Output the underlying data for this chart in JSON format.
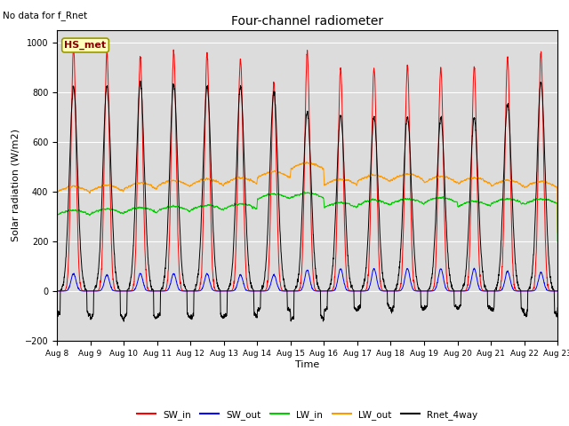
{
  "title": "Four-channel radiometer",
  "top_left_text": "No data for f_Rnet",
  "station_label": "HS_met",
  "ylabel": "Solar radiation (W/m2)",
  "xlabel": "Time",
  "ylim": [
    -200,
    1050
  ],
  "yticks": [
    -200,
    0,
    200,
    400,
    600,
    800,
    1000
  ],
  "n_days": 15,
  "day_start": 8,
  "bg_color": "#dcdcdc",
  "legend": [
    "SW_in",
    "SW_out",
    "LW_in",
    "LW_out",
    "Rnet_4way"
  ],
  "legend_colors": [
    "#ff0000",
    "#0000ff",
    "#00cc00",
    "#ff9900",
    "#000000"
  ],
  "SW_in_peak": [
    980,
    960,
    945,
    960,
    960,
    935,
    840,
    960,
    895,
    900,
    905,
    900,
    900,
    940,
    960
  ],
  "SW_out_peak": [
    70,
    65,
    70,
    70,
    70,
    65,
    65,
    85,
    90,
    90,
    90,
    90,
    90,
    80,
    75
  ],
  "LW_in_base": [
    305,
    310,
    315,
    320,
    325,
    330,
    370,
    375,
    335,
    345,
    350,
    355,
    340,
    350,
    350
  ],
  "LW_out_base": [
    395,
    400,
    410,
    420,
    425,
    430,
    455,
    490,
    425,
    440,
    445,
    435,
    430,
    420,
    415
  ],
  "Rnet_peak": [
    820,
    820,
    840,
    830,
    820,
    820,
    800,
    720,
    705,
    695,
    700,
    695,
    695,
    750,
    840
  ],
  "Rnet_night": [
    -100,
    -110,
    -110,
    -105,
    -110,
    -105,
    -80,
    -120,
    -80,
    -70,
    -75,
    -70,
    -70,
    -80,
    -100
  ],
  "figsize": [
    6.4,
    4.8
  ],
  "dpi": 100
}
